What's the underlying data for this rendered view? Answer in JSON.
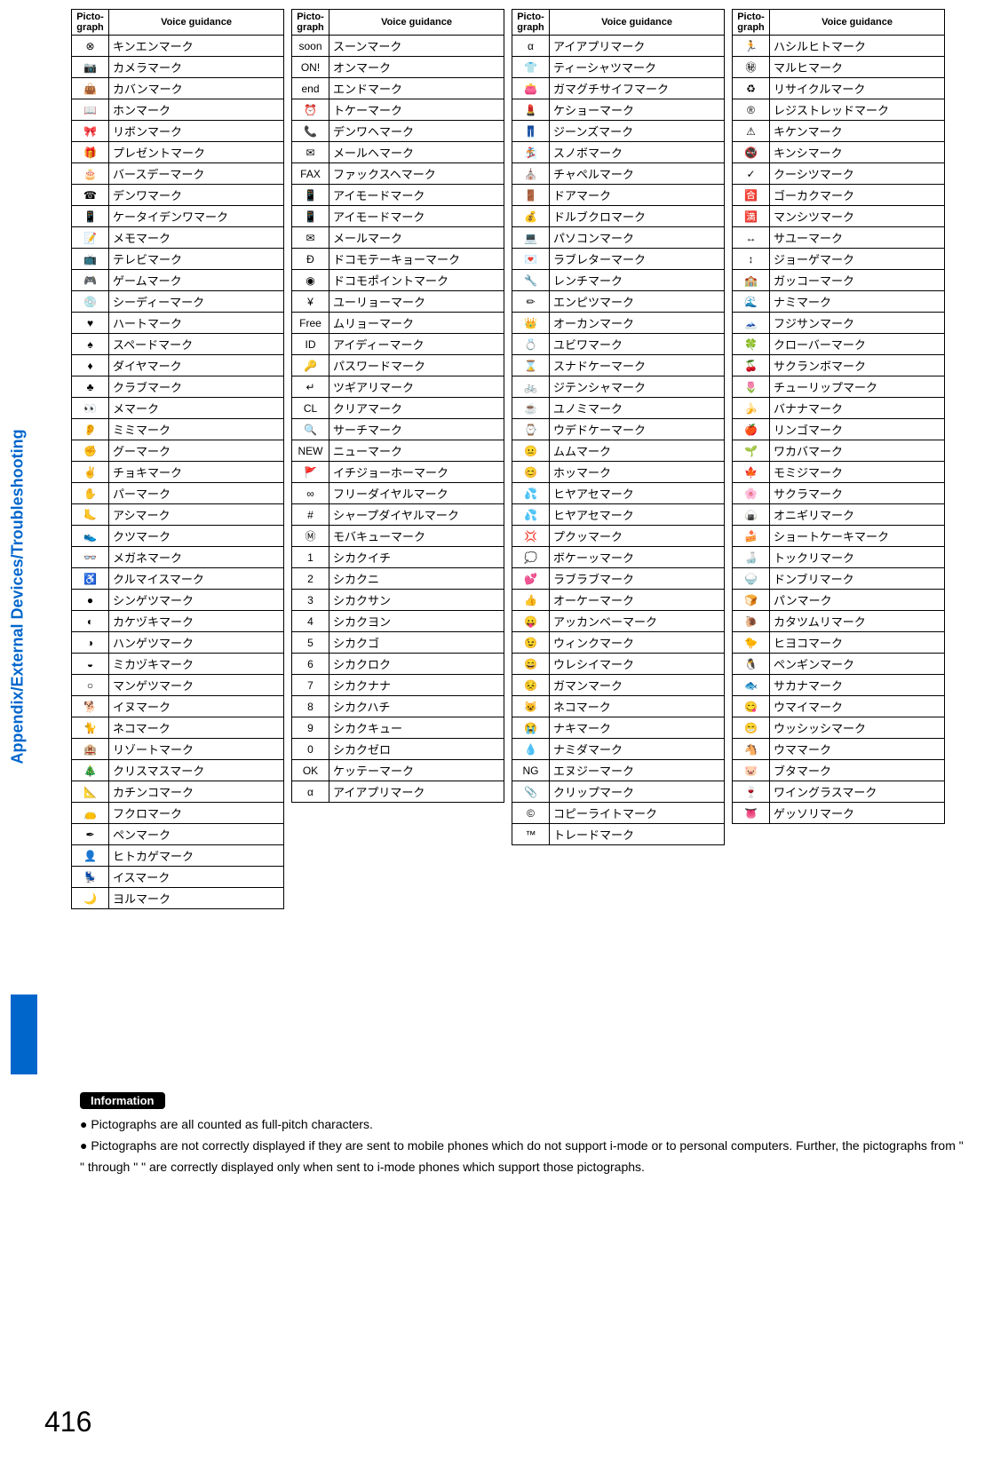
{
  "sideLabel": "Appendix/External Devices/Troubleshooting",
  "pageNumber": "416",
  "headers": {
    "picto": "Picto-graph",
    "voice": "Voice guidance"
  },
  "infoLabel": "Information",
  "infoBullets": [
    "Pictographs are all counted as full-pitch characters.",
    "Pictographs are not correctly displayed if they are sent to mobile phones which do not support i-mode or to personal computers. Further, the pictographs from \" \" through \" \" are correctly displayed only when sent to i-mode phones which support those pictographs."
  ],
  "col1": [
    [
      "⊗",
      "キンエンマーク"
    ],
    [
      "📷",
      "カメラマーク"
    ],
    [
      "👜",
      "カバンマーク"
    ],
    [
      "📖",
      "ホンマーク"
    ],
    [
      "🎀",
      "リボンマーク"
    ],
    [
      "🎁",
      "プレゼントマーク"
    ],
    [
      "🎂",
      "バースデーマーク"
    ],
    [
      "☎",
      "デンワマーク"
    ],
    [
      "📱",
      "ケータイデンワマーク"
    ],
    [
      "📝",
      "メモマーク"
    ],
    [
      "📺",
      "テレビマーク"
    ],
    [
      "🎮",
      "ゲームマーク"
    ],
    [
      "💿",
      "シーディーマーク"
    ],
    [
      "♥",
      "ハートマーク"
    ],
    [
      "♠",
      "スペードマーク"
    ],
    [
      "♦",
      "ダイヤマーク"
    ],
    [
      "♣",
      "クラブマーク"
    ],
    [
      "👀",
      "メマーク"
    ],
    [
      "👂",
      "ミミマーク"
    ],
    [
      "✊",
      "グーマーク"
    ],
    [
      "✌",
      "チョキマーク"
    ],
    [
      "✋",
      "パーマーク"
    ],
    [
      "🦶",
      "アシマーク"
    ],
    [
      "👟",
      "クツマーク"
    ],
    [
      "👓",
      "メガネマーク"
    ],
    [
      "♿",
      "クルマイスマーク"
    ],
    [
      "●",
      "シンゲツマーク"
    ],
    [
      "◐",
      "カケヅキマーク"
    ],
    [
      "◑",
      "ハンゲツマーク"
    ],
    [
      "◒",
      "ミカヅキマーク"
    ],
    [
      "○",
      "マンゲツマーク"
    ],
    [
      "🐕",
      "イヌマーク"
    ],
    [
      "🐈",
      "ネコマーク"
    ],
    [
      "🏨",
      "リゾートマーク"
    ],
    [
      "🎄",
      "クリスマスマーク"
    ],
    [
      "📐",
      "カチンコマーク"
    ],
    [
      "👝",
      "フクロマーク"
    ],
    [
      "✒",
      "ペンマーク"
    ],
    [
      "👤",
      "ヒトカゲマーク"
    ],
    [
      "💺",
      "イスマーク"
    ],
    [
      "🌙",
      "ヨルマーク"
    ]
  ],
  "col2": [
    [
      "soon",
      "スーンマーク"
    ],
    [
      "ON!",
      "オンマーク"
    ],
    [
      "end",
      "エンドマーク"
    ],
    [
      "⏰",
      "トケーマーク"
    ],
    [
      "📞",
      "デンワヘマーク"
    ],
    [
      "✉",
      "メールヘマーク"
    ],
    [
      "FAX",
      "ファックスヘマーク"
    ],
    [
      "📱",
      "アイモードマーク"
    ],
    [
      "📱",
      "アイモードマーク"
    ],
    [
      "✉",
      "メールマーク"
    ],
    [
      "Đ",
      "ドコモテーキョーマーク"
    ],
    [
      "◉",
      "ドコモポイントマーク"
    ],
    [
      "¥",
      "ユーリョーマーク"
    ],
    [
      "Free",
      "ムリョーマーク"
    ],
    [
      "ID",
      "アイディーマーク"
    ],
    [
      "🔑",
      "パスワードマーク"
    ],
    [
      "↵",
      "ツギアリマーク"
    ],
    [
      "CL",
      "クリアマーク"
    ],
    [
      "🔍",
      "サーチマーク"
    ],
    [
      "NEW",
      "ニューマーク"
    ],
    [
      "🚩",
      "イチジョーホーマーク"
    ],
    [
      "∞",
      "フリーダイヤルマーク"
    ],
    [
      "#",
      "シャープダイヤルマーク"
    ],
    [
      "Ⓜ",
      "モバキューマーク"
    ],
    [
      "1",
      "シカクイチ"
    ],
    [
      "2",
      "シカクニ"
    ],
    [
      "3",
      "シカクサン"
    ],
    [
      "4",
      "シカクヨン"
    ],
    [
      "5",
      "シカクゴ"
    ],
    [
      "6",
      "シカクロク"
    ],
    [
      "7",
      "シカクナナ"
    ],
    [
      "8",
      "シカクハチ"
    ],
    [
      "9",
      "シカクキュー"
    ],
    [
      "0",
      "シカクゼロ"
    ],
    [
      "OK",
      "ケッテーマーク"
    ],
    [
      "α",
      "アイアプリマーク"
    ]
  ],
  "col3": [
    [
      "α",
      "アイアプリマーク"
    ],
    [
      "👕",
      "ティーシャツマーク"
    ],
    [
      "👛",
      "ガマグチサイフマーク"
    ],
    [
      "💄",
      "ケショーマーク"
    ],
    [
      "👖",
      "ジーンズマーク"
    ],
    [
      "🏂",
      "スノボマーク"
    ],
    [
      "⛪",
      "チャペルマーク"
    ],
    [
      "🚪",
      "ドアマーク"
    ],
    [
      "💰",
      "ドルブクロマーク"
    ],
    [
      "💻",
      "パソコンマーク"
    ],
    [
      "💌",
      "ラブレターマーク"
    ],
    [
      "🔧",
      "レンチマーク"
    ],
    [
      "✏",
      "エンピツマーク"
    ],
    [
      "👑",
      "オーカンマーク"
    ],
    [
      "💍",
      "ユビワマーク"
    ],
    [
      "⌛",
      "スナドケーマーク"
    ],
    [
      "🚲",
      "ジテンシャマーク"
    ],
    [
      "☕",
      "ユノミマーク"
    ],
    [
      "⌚",
      "ウデドケーマーク"
    ],
    [
      "😐",
      "ムムマーク"
    ],
    [
      "😊",
      "ホッマーク"
    ],
    [
      "💦",
      "ヒヤアセマーク"
    ],
    [
      "💦",
      "ヒヤアセマーク"
    ],
    [
      "💢",
      "プクッマーク"
    ],
    [
      "💭",
      "ボケーッマーク"
    ],
    [
      "💕",
      "ラブラブマーク"
    ],
    [
      "👍",
      "オーケーマーク"
    ],
    [
      "😛",
      "アッカンベーマーク"
    ],
    [
      "😉",
      "ウィンクマーク"
    ],
    [
      "😄",
      "ウレシイマーク"
    ],
    [
      "😣",
      "ガマンマーク"
    ],
    [
      "😺",
      "ネコマーク"
    ],
    [
      "😭",
      "ナキマーク"
    ],
    [
      "💧",
      "ナミダマーク"
    ],
    [
      "NG",
      "エヌジーマーク"
    ],
    [
      "📎",
      "クリップマーク"
    ],
    [
      "©",
      "コピーライトマーク"
    ],
    [
      "™",
      "トレードマーク"
    ]
  ],
  "col4": [
    [
      "🏃",
      "ハシルヒトマーク"
    ],
    [
      "㊙",
      "マルヒマーク"
    ],
    [
      "♻",
      "リサイクルマーク"
    ],
    [
      "®",
      "レジストレッドマーク"
    ],
    [
      "⚠",
      "キケンマーク"
    ],
    [
      "🚭",
      "キンシマーク"
    ],
    [
      "✓",
      "クーシツマーク"
    ],
    [
      "🈴",
      "ゴーカクマーク"
    ],
    [
      "🈵",
      "マンシツマーク"
    ],
    [
      "↔",
      "サユーマーク"
    ],
    [
      "↕",
      "ジョーゲマーク"
    ],
    [
      "🏫",
      "ガッコーマーク"
    ],
    [
      "🌊",
      "ナミマーク"
    ],
    [
      "🗻",
      "フジサンマーク"
    ],
    [
      "🍀",
      "クローバーマーク"
    ],
    [
      "🍒",
      "サクランボマーク"
    ],
    [
      "🌷",
      "チューリップマーク"
    ],
    [
      "🍌",
      "バナナマーク"
    ],
    [
      "🍎",
      "リンゴマーク"
    ],
    [
      "🌱",
      "ワカバマーク"
    ],
    [
      "🍁",
      "モミジマーク"
    ],
    [
      "🌸",
      "サクラマーク"
    ],
    [
      "🍙",
      "オニギリマーク"
    ],
    [
      "🍰",
      "ショートケーキマーク"
    ],
    [
      "🍶",
      "トックリマーク"
    ],
    [
      "🍚",
      "ドンブリマーク"
    ],
    [
      "🍞",
      "パンマーク"
    ],
    [
      "🐌",
      "カタツムリマーク"
    ],
    [
      "🐤",
      "ヒヨコマーク"
    ],
    [
      "🐧",
      "ペンギンマーク"
    ],
    [
      "🐟",
      "サカナマーク"
    ],
    [
      "😋",
      "ウマイマーク"
    ],
    [
      "😁",
      "ウッシッシマーク"
    ],
    [
      "🐴",
      "ウママーク"
    ],
    [
      "🐷",
      "ブタマーク"
    ],
    [
      "🍷",
      "ワイングラスマーク"
    ],
    [
      "👅",
      "ゲッソリマーク"
    ]
  ]
}
